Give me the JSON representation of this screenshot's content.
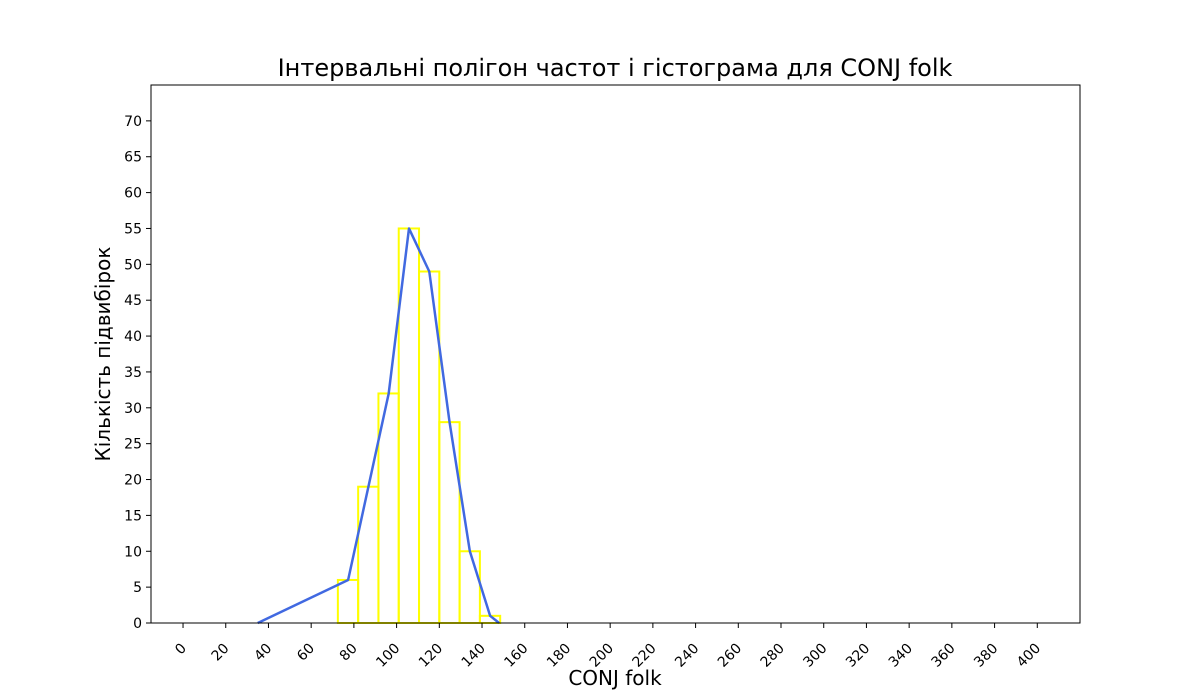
{
  "chart_data": {
    "type": "histogram",
    "title": "Інтервальні полігон частот і гістограма для CONJ folk",
    "xlabel": "CONJ folk",
    "ylabel": "Кількість підвибірок",
    "xlim": [
      -15,
      420
    ],
    "ylim": [
      0,
      75
    ],
    "x_ticks": [
      0,
      20,
      40,
      60,
      80,
      100,
      120,
      140,
      160,
      180,
      200,
      220,
      240,
      260,
      280,
      300,
      320,
      340,
      360,
      380,
      400
    ],
    "y_ticks": [
      0,
      5,
      10,
      15,
      20,
      25,
      30,
      35,
      40,
      45,
      50,
      55,
      60,
      65,
      70
    ],
    "grid": false,
    "legend": "none",
    "histogram": {
      "bin_edges": [
        72.5,
        82,
        91.5,
        101,
        110.5,
        120,
        129.5,
        139,
        148.5
      ],
      "counts": [
        6,
        19,
        32,
        55,
        49,
        28,
        10,
        1
      ],
      "color": "#ffff00"
    },
    "polygon": {
      "x": [
        35,
        77.3,
        86.8,
        96.3,
        105.8,
        115.3,
        124.8,
        134.3,
        143.8,
        148
      ],
      "y": [
        0,
        6,
        19,
        32,
        55,
        49,
        28,
        10,
        1,
        0
      ],
      "color": "#4169e1"
    }
  }
}
